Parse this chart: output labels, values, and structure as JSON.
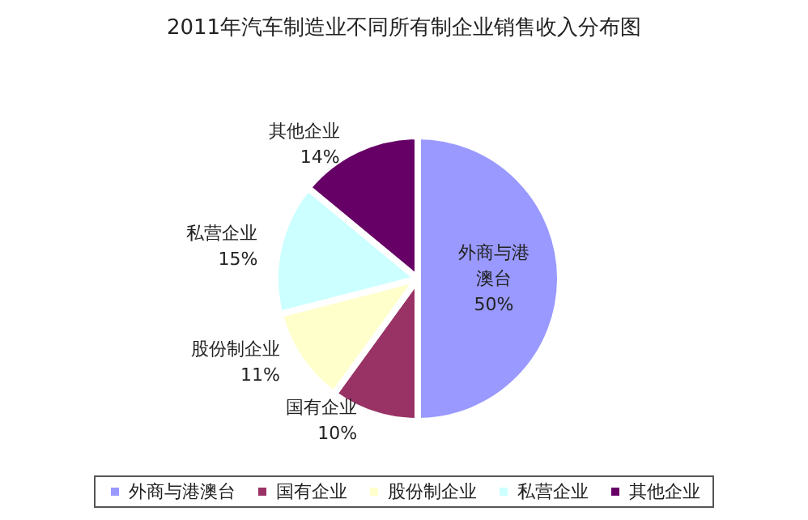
{
  "chart_data": {
    "type": "pie",
    "title": "2011年汽车制造业不同所有制企业销售收入分布图",
    "categories": [
      "外商与港澳台",
      "国有企业",
      "股份制企业",
      "私营企业",
      "其他企业"
    ],
    "values": [
      50,
      10,
      11,
      15,
      14
    ],
    "value_labels": [
      "50%",
      "10%",
      "11%",
      "15%",
      "14%"
    ],
    "colors": [
      "#9999ff",
      "#993366",
      "#ffffcc",
      "#ccffff",
      "#660066"
    ],
    "legend": "bottom"
  }
}
